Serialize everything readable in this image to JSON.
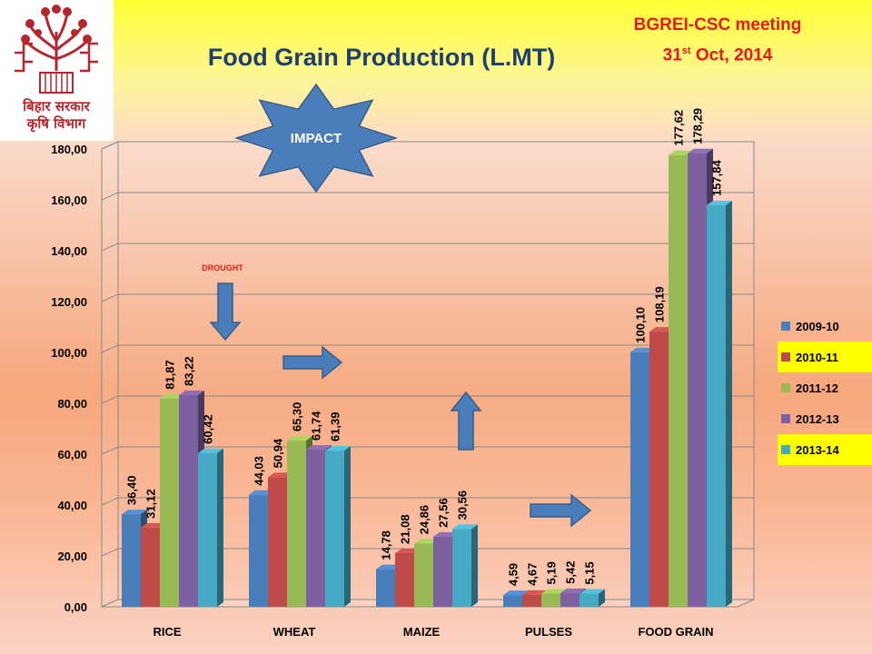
{
  "header": {
    "title": "Food Grain Production (L.MT)",
    "meeting_line1": "BGREI-CSC meeting",
    "meeting_day": "31",
    "meeting_day_suffix": "st",
    "meeting_rest": " Oct, 2014",
    "logo_text_line1": "बिहार सरकार",
    "logo_text_line2": "कृषि विभाग"
  },
  "annotations": {
    "impact": "IMPACT",
    "drought": "DROUGHT"
  },
  "colors": {
    "series": [
      "#4a7ebb",
      "#be4b48",
      "#98b954",
      "#7d60a0",
      "#46aac5"
    ],
    "title": "#1f3f6e",
    "meeting": "#e8191c",
    "legend_highlight": "#ffff00",
    "arrow": "#4a7ebb"
  },
  "chart_data": {
    "type": "bar",
    "title": "Food Grain Production (L.MT)",
    "categories": [
      "RICE",
      "WHEAT",
      "MAIZE",
      "PULSES",
      "FOOD GRAIN"
    ],
    "series": [
      {
        "name": "2009-10",
        "values": [
          36.4,
          44.03,
          14.78,
          4.59,
          100.1
        ],
        "labels": [
          "36,40",
          "44,03",
          "14,78",
          "4,59",
          "100,10"
        ]
      },
      {
        "name": "2010-11",
        "values": [
          31.12,
          50.94,
          21.08,
          4.67,
          108.19
        ],
        "labels": [
          "31,12",
          "50,94",
          "21,08",
          "4,67",
          "108,19"
        ]
      },
      {
        "name": "2011-12",
        "values": [
          81.87,
          65.3,
          24.86,
          5.19,
          177.62
        ],
        "labels": [
          "81,87",
          "65,30",
          "24,86",
          "5,19",
          "177,62"
        ]
      },
      {
        "name": "2012-13",
        "values": [
          83.22,
          61.74,
          27.56,
          5.42,
          178.29
        ],
        "labels": [
          "83,22",
          "61,74",
          "27,56",
          "5,42",
          "178,29"
        ]
      },
      {
        "name": "2013-14",
        "values": [
          60.42,
          61.39,
          30.56,
          5.15,
          157.84
        ],
        "labels": [
          "60,42",
          "61,39",
          "30,56",
          "5,15",
          "157,84"
        ]
      }
    ],
    "ylim": [
      0,
      180
    ],
    "yticks": [
      "0,00",
      "20,00",
      "40,00",
      "60,00",
      "80,00",
      "100,00",
      "120,00",
      "140,00",
      "160,00",
      "180,00"
    ],
    "grid": true,
    "legend_position": "right",
    "highlighted_legend_entries": [
      "2010-11",
      "2013-14"
    ]
  }
}
